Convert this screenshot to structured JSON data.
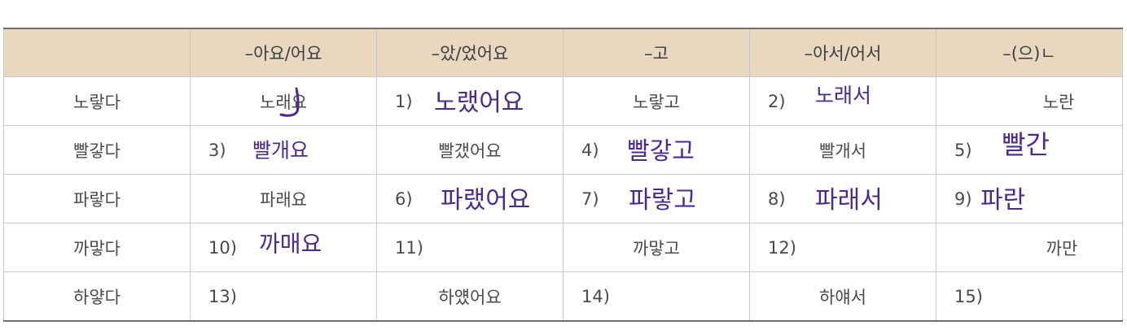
{
  "table": {
    "headers": [
      "",
      "–아요/어요",
      "–았/었어요",
      "–고",
      "–아서/어서",
      "–(으)ㄴ"
    ],
    "rows": [
      {
        "stem": "노랗다",
        "cells": [
          {
            "given": "노래요"
          },
          {
            "num": "1)",
            "answer": "노랬어요"
          },
          {
            "given": "노랗고"
          },
          {
            "num": "2)",
            "answer": "노래서"
          },
          {
            "given": "노란"
          }
        ]
      },
      {
        "stem": "빨갛다",
        "cells": [
          {
            "num": "3)",
            "answer": "빨개요"
          },
          {
            "given": "빨갰어요"
          },
          {
            "num": "4)",
            "answer": "빨갛고"
          },
          {
            "given": "빨개서"
          },
          {
            "num": "5)",
            "answer": "빨간"
          }
        ]
      },
      {
        "stem": "파랗다",
        "cells": [
          {
            "given": "파래요"
          },
          {
            "num": "6)",
            "answer": "파랬어요"
          },
          {
            "num": "7)",
            "answer": "파랗고"
          },
          {
            "num": "8)",
            "answer": "파래서"
          },
          {
            "num": "9)",
            "answer": "파란"
          }
        ]
      },
      {
        "stem": "까맣다",
        "cells": [
          {
            "num": "10)",
            "answer": "까매요"
          },
          {
            "num": "11)"
          },
          {
            "given": "까맣고"
          },
          {
            "num": "12)"
          },
          {
            "given": "까만"
          }
        ]
      },
      {
        "stem": "하얗다",
        "cells": [
          {
            "num": "13)"
          },
          {
            "given": "하얬어요"
          },
          {
            "num": "14)"
          },
          {
            "given": "하얘서"
          },
          {
            "num": "15)"
          }
        ]
      }
    ]
  },
  "colors": {
    "header_bg": "#e7d8bf",
    "ink": "#4b2a8c",
    "print_text": "#4a4a4a",
    "grid": "#c9c9c9"
  }
}
